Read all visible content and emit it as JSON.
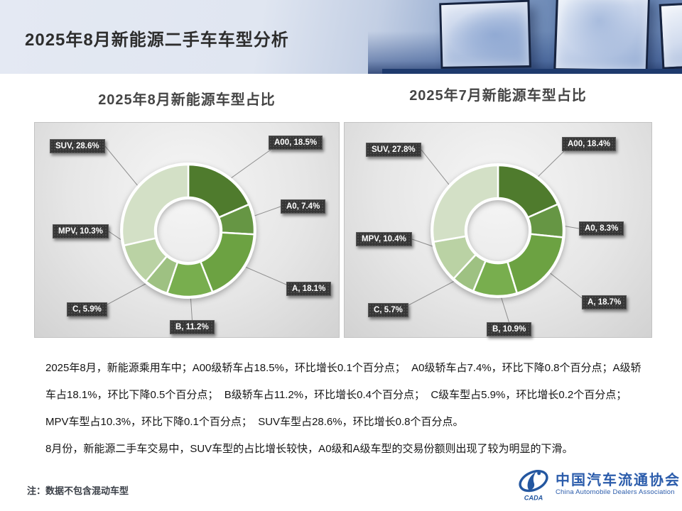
{
  "header": {
    "title": "2025年8月新能源二手车车型分析"
  },
  "chart_data": [
    {
      "type": "donut",
      "title": "2025年8月新能源车型占比",
      "categories": [
        "A00",
        "A0",
        "A",
        "B",
        "C",
        "MPV",
        "SUV"
      ],
      "values": [
        18.5,
        7.4,
        18.1,
        11.2,
        5.9,
        10.3,
        28.6
      ],
      "colors": [
        "#4f7b2d",
        "#669644",
        "#6ca242",
        "#78ae4e",
        "#9ec182",
        "#bad2a4",
        "#d3e0c6"
      ],
      "start_angle_deg": 0,
      "direction": "clockwise",
      "label_format": "{category}, {value}%"
    },
    {
      "type": "donut",
      "title": "2025年7月新能源车型占比",
      "categories": [
        "A00",
        "A0",
        "A",
        "B",
        "C",
        "MPV",
        "SUV"
      ],
      "values": [
        18.4,
        8.3,
        18.7,
        10.9,
        5.7,
        10.4,
        27.8
      ],
      "colors": [
        "#4f7b2d",
        "#669644",
        "#6ca242",
        "#78ae4e",
        "#9ec182",
        "#bad2a4",
        "#d3e0c6"
      ],
      "start_angle_deg": 0,
      "direction": "clockwise",
      "label_format": "{category}, {value}%"
    }
  ],
  "body": {
    "paragraph1": "2025年8月，新能源乘用车中；A00级轿车占18.5%，环比增长0.1个百分点；  A0级轿车占7.4%，环比下降0.8个百分点；A级轿车占18.1%，环比下降0.5个百分点；  B级轿车占11.2%，环比增长0.4个百分点；  C级车型占5.9%，环比增长0.2个百分点；  MPV车型占10.3%，环比下降0.1个百分点；  SUV车型占28.6%，环比增长0.8个百分点。",
    "paragraph2": "8月份，新能源二手车交易中，SUV车型的占比增长较快，A0级和A级车型的交易份额则出现了较为明显的下滑。"
  },
  "footer": {
    "note": "注：数据不包含混动车型",
    "logo_badge": "CADA",
    "logo_cn": "中国汽车流通协会",
    "logo_en": "China Automobile Dealers Association",
    "logo_color": "#2b5cab"
  }
}
